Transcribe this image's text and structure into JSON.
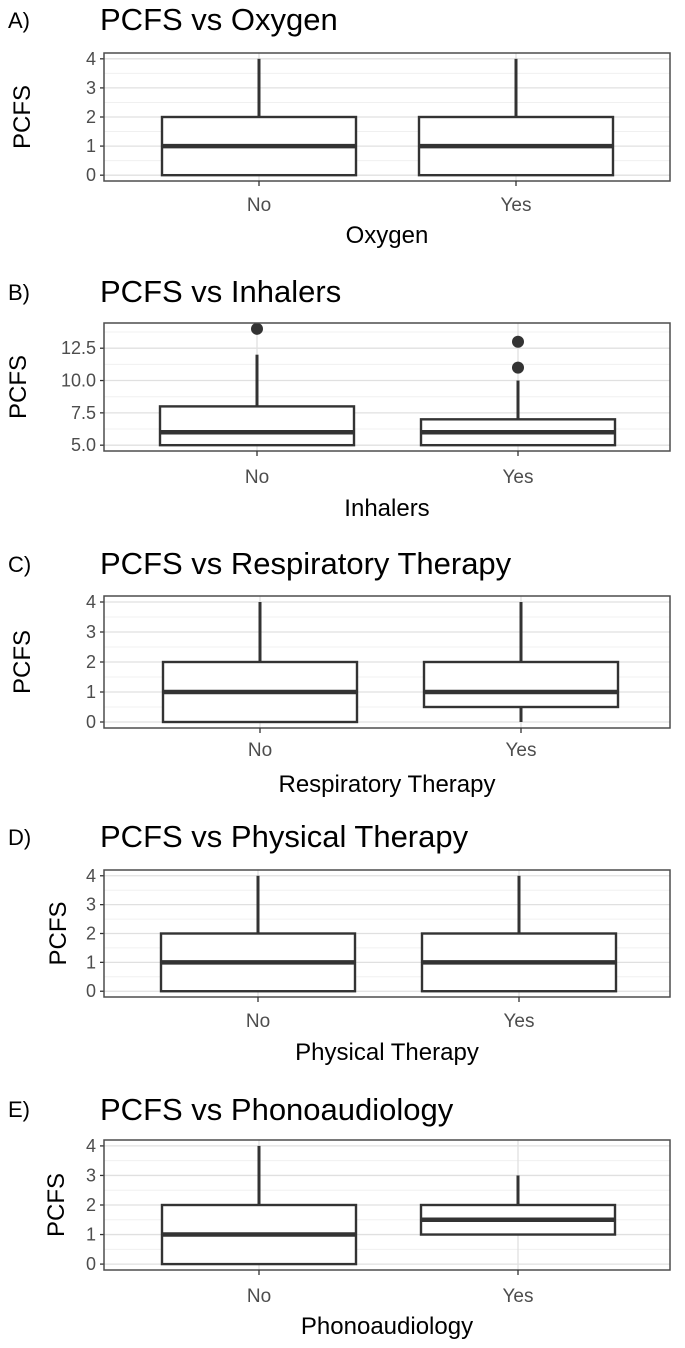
{
  "panels": [
    {
      "letter": "A)",
      "title": "PCFS vs Oxygen"
    },
    {
      "letter": "B)",
      "title": "PCFS vs Inhalers"
    },
    {
      "letter": "C)",
      "title": "PCFS vs Respiratory Therapy"
    },
    {
      "letter": "D)",
      "title": "PCFS vs Physical Therapy"
    },
    {
      "letter": "E)",
      "title": "PCFS vs Phonoaudiology"
    }
  ],
  "colors": {
    "box_stroke": "#333333",
    "panel_border": "#4d4d4d",
    "grid_major": "#e0e0e0",
    "grid_minor": "#f0f0f0",
    "outlier": "#333333",
    "tick_label": "#4d4d4d",
    "text": "#000000"
  },
  "chart_data": [
    {
      "type": "box",
      "title": "PCFS vs Oxygen",
      "xlabel": "Oxygen",
      "ylabel": "PCFS",
      "categories": [
        "No",
        "Yes"
      ],
      "ylim": [
        -0.2,
        4.2
      ],
      "yticks": [
        0,
        1,
        2,
        3,
        4
      ],
      "ytick_labels": [
        "0",
        "1",
        "2",
        "3",
        "4"
      ],
      "grid": true,
      "boxes": [
        {
          "category": "No",
          "min": 0,
          "q1": 0,
          "median": 1,
          "q3": 2,
          "max": 4,
          "outliers": []
        },
        {
          "category": "Yes",
          "min": 0,
          "q1": 0,
          "median": 1,
          "q3": 2,
          "max": 4,
          "outliers": []
        }
      ]
    },
    {
      "type": "box",
      "title": "PCFS vs Inhalers",
      "xlabel": "Inhalers",
      "ylabel": "PCFS",
      "categories": [
        "No",
        "Yes"
      ],
      "ylim": [
        4.55,
        14.45
      ],
      "yticks": [
        5.0,
        7.5,
        10.0,
        12.5
      ],
      "ytick_labels": [
        "5.0",
        "7.5",
        "10.0",
        "12.5"
      ],
      "grid": true,
      "boxes": [
        {
          "category": "No",
          "min": 5,
          "q1": 5,
          "median": 6,
          "q3": 8,
          "max": 12,
          "outliers": [
            14
          ]
        },
        {
          "category": "Yes",
          "min": 5,
          "q1": 5,
          "median": 6,
          "q3": 7,
          "max": 10,
          "outliers": [
            11,
            13
          ]
        }
      ]
    },
    {
      "type": "box",
      "title": "PCFS vs Respiratory Therapy",
      "xlabel": "Respiratory Therapy",
      "ylabel": "PCFS",
      "categories": [
        "No",
        "Yes"
      ],
      "ylim": [
        -0.2,
        4.2
      ],
      "yticks": [
        0,
        1,
        2,
        3,
        4
      ],
      "ytick_labels": [
        "0",
        "1",
        "2",
        "3",
        "4"
      ],
      "grid": true,
      "boxes": [
        {
          "category": "No",
          "min": 0,
          "q1": 0,
          "median": 1,
          "q3": 2,
          "max": 4,
          "outliers": []
        },
        {
          "category": "Yes",
          "min": 0,
          "q1": 0.5,
          "median": 1,
          "q3": 2,
          "max": 4,
          "outliers": []
        }
      ]
    },
    {
      "type": "box",
      "title": "PCFS vs Physical Therapy",
      "xlabel": "Physical Therapy",
      "ylabel": "PCFS",
      "categories": [
        "No",
        "Yes"
      ],
      "ylim": [
        -0.2,
        4.2
      ],
      "yticks": [
        0,
        1,
        2,
        3,
        4
      ],
      "ytick_labels": [
        "0",
        "1",
        "2",
        "3",
        "4"
      ],
      "grid": true,
      "boxes": [
        {
          "category": "No",
          "min": 0,
          "q1": 0,
          "median": 1,
          "q3": 2,
          "max": 4,
          "outliers": []
        },
        {
          "category": "Yes",
          "min": 0,
          "q1": 0,
          "median": 1,
          "q3": 2,
          "max": 4,
          "outliers": []
        }
      ]
    },
    {
      "type": "box",
      "title": "PCFS vs Phonoaudiology",
      "xlabel": "Phonoaudiology",
      "ylabel": "PCFS",
      "categories": [
        "No",
        "Yes"
      ],
      "ylim": [
        -0.2,
        4.2
      ],
      "yticks": [
        0,
        1,
        2,
        3,
        4
      ],
      "ytick_labels": [
        "0",
        "1",
        "2",
        "3",
        "4"
      ],
      "grid": true,
      "boxes": [
        {
          "category": "No",
          "min": 0,
          "q1": 0,
          "median": 1,
          "q3": 2,
          "max": 4,
          "outliers": []
        },
        {
          "category": "Yes",
          "min": 1,
          "q1": 1,
          "median": 1.5,
          "q3": 2,
          "max": 3,
          "outliers": []
        }
      ]
    }
  ]
}
